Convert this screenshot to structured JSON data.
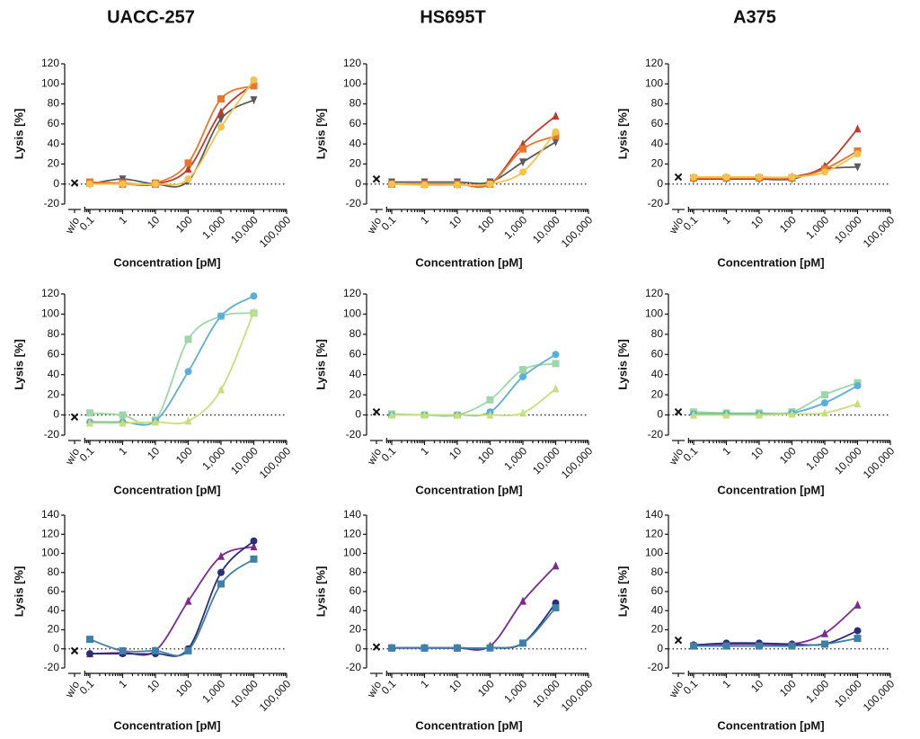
{
  "column_titles": [
    "UACC-257",
    "HS695T",
    "A375"
  ],
  "chart_data": [
    {
      "type": "line",
      "xscale": "log",
      "ylabel": "Lysis [%]",
      "xlabel": "Concentration [pM]",
      "control_label": "w/o",
      "control_value": 1,
      "x": [
        0.1,
        1,
        10,
        100,
        1000,
        10000
      ],
      "xlim": [
        0.07,
        100000
      ],
      "xticks": [
        0.1,
        1,
        10,
        100,
        {
          "value": 1000,
          "label": "1,000"
        },
        {
          "value": 10000,
          "label": "10,000"
        },
        {
          "value": 100000,
          "label": "100,000"
        }
      ],
      "ylim": [
        -20,
        120
      ],
      "yticks": [
        -20,
        0,
        20,
        40,
        60,
        80,
        100,
        120
      ],
      "series": [
        {
          "color": "#5b5b5b",
          "marker": "triangle-down",
          "values": [
            0,
            5,
            0,
            3,
            65,
            84
          ]
        },
        {
          "color": "#c0392b",
          "marker": "triangle",
          "values": [
            1,
            0,
            0,
            15,
            72,
            100
          ]
        },
        {
          "color": "#e8772e",
          "marker": "square",
          "values": [
            2,
            1,
            1,
            21,
            85,
            98
          ]
        },
        {
          "color": "#f5c24a",
          "marker": "circle",
          "values": [
            0,
            0,
            0,
            5,
            57,
            104
          ]
        }
      ]
    },
    {
      "type": "line",
      "xscale": "log",
      "ylabel": "Lysis [%]",
      "xlabel": "Concentration [pM]",
      "control_label": "w/o",
      "control_value": 5,
      "x": [
        0.1,
        1,
        10,
        100,
        1000,
        10000
      ],
      "xlim": [
        0.07,
        100000
      ],
      "xticks": [
        0.1,
        1,
        10,
        100,
        {
          "value": 1000,
          "label": "1,000"
        },
        {
          "value": 10000,
          "label": "10,000"
        },
        {
          "value": 100000,
          "label": "100,000"
        }
      ],
      "ylim": [
        -20,
        120
      ],
      "yticks": [
        -20,
        0,
        20,
        40,
        60,
        80,
        100,
        120
      ],
      "series": [
        {
          "color": "#5b5b5b",
          "marker": "triangle-down",
          "values": [
            2,
            2,
            2,
            2,
            22,
            42
          ]
        },
        {
          "color": "#c0392b",
          "marker": "triangle",
          "values": [
            0,
            0,
            0,
            0,
            40,
            68
          ]
        },
        {
          "color": "#e8772e",
          "marker": "square",
          "values": [
            0,
            0,
            0,
            0,
            35,
            48
          ]
        },
        {
          "color": "#f5c24a",
          "marker": "circle",
          "values": [
            0,
            -1,
            -1,
            0,
            12,
            52
          ]
        }
      ]
    },
    {
      "type": "line",
      "xscale": "log",
      "ylabel": "Lysis [%]",
      "xlabel": "Concentration [pM]",
      "control_label": "w/o",
      "control_value": 7,
      "x": [
        0.1,
        1,
        10,
        100,
        1000,
        10000
      ],
      "xlim": [
        0.07,
        100000
      ],
      "xticks": [
        0.1,
        1,
        10,
        100,
        {
          "value": 1000,
          "label": "1,000"
        },
        {
          "value": 10000,
          "label": "10,000"
        },
        {
          "value": 100000,
          "label": "100,000"
        }
      ],
      "ylim": [
        -20,
        120
      ],
      "yticks": [
        -20,
        0,
        20,
        40,
        60,
        80,
        100,
        120
      ],
      "series": [
        {
          "color": "#5b5b5b",
          "marker": "triangle-down",
          "values": [
            5,
            5,
            5,
            5,
            15,
            17
          ]
        },
        {
          "color": "#c0392b",
          "marker": "triangle",
          "values": [
            6,
            6,
            6,
            7,
            18,
            55
          ]
        },
        {
          "color": "#e8772e",
          "marker": "square",
          "values": [
            6,
            6,
            6,
            6,
            15,
            33
          ]
        },
        {
          "color": "#f5c24a",
          "marker": "circle",
          "values": [
            7,
            7,
            7,
            7,
            12,
            30
          ]
        }
      ]
    },
    {
      "type": "line",
      "xscale": "log",
      "ylabel": "Lysis [%]",
      "xlabel": "Concentration [pM]",
      "control_label": "w/o",
      "control_value": -2,
      "x": [
        0.1,
        1,
        10,
        100,
        1000,
        10000
      ],
      "xlim": [
        0.07,
        100000
      ],
      "xticks": [
        0.1,
        1,
        10,
        100,
        {
          "value": 1000,
          "label": "1,000"
        },
        {
          "value": 10000,
          "label": "10,000"
        },
        {
          "value": 100000,
          "label": "100,000"
        }
      ],
      "ylim": [
        -20,
        120
      ],
      "yticks": [
        -20,
        0,
        20,
        40,
        60,
        80,
        100,
        120
      ],
      "series": [
        {
          "color": "#9fd6a9",
          "marker": "square",
          "values": [
            2,
            0,
            -5,
            75,
            98,
            101
          ]
        },
        {
          "color": "#5aaed8",
          "marker": "circle",
          "values": [
            -7,
            -7,
            -6,
            43,
            98,
            118
          ]
        },
        {
          "color": "#c6df7a",
          "marker": "triangle",
          "values": [
            -8,
            -8,
            -7,
            -6,
            25,
            102
          ]
        }
      ]
    },
    {
      "type": "line",
      "xscale": "log",
      "ylabel": "Lysis [%]",
      "xlabel": "Concentration [pM]",
      "control_label": "w/o",
      "control_value": 3,
      "x": [
        0.1,
        1,
        10,
        100,
        1000,
        10000
      ],
      "xlim": [
        0.07,
        100000
      ],
      "xticks": [
        0.1,
        1,
        10,
        100,
        {
          "value": 1000,
          "label": "1,000"
        },
        {
          "value": 10000,
          "label": "10,000"
        },
        {
          "value": 100000,
          "label": "100,000"
        }
      ],
      "ylim": [
        -20,
        120
      ],
      "yticks": [
        -20,
        0,
        20,
        40,
        60,
        80,
        100,
        120
      ],
      "series": [
        {
          "color": "#9fd6a9",
          "marker": "square",
          "values": [
            1,
            0,
            0,
            15,
            45,
            51
          ]
        },
        {
          "color": "#5aaed8",
          "marker": "circle",
          "values": [
            0,
            0,
            0,
            3,
            38,
            60
          ]
        },
        {
          "color": "#c6df7a",
          "marker": "triangle",
          "values": [
            0,
            0,
            0,
            0,
            2,
            26
          ]
        }
      ]
    },
    {
      "type": "line",
      "xscale": "log",
      "ylabel": "Lysis [%]",
      "xlabel": "Concentration [pM]",
      "control_label": "w/o",
      "control_value": 3,
      "x": [
        0.1,
        1,
        10,
        100,
        1000,
        10000
      ],
      "xlim": [
        0.07,
        100000
      ],
      "xticks": [
        0.1,
        1,
        10,
        100,
        {
          "value": 1000,
          "label": "1,000"
        },
        {
          "value": 10000,
          "label": "10,000"
        },
        {
          "value": 100000,
          "label": "100,000"
        }
      ],
      "ylim": [
        -20,
        120
      ],
      "yticks": [
        -20,
        0,
        20,
        40,
        60,
        80,
        100,
        120
      ],
      "series": [
        {
          "color": "#9fd6a9",
          "marker": "square",
          "values": [
            3,
            2,
            2,
            3,
            20,
            32
          ]
        },
        {
          "color": "#5aaed8",
          "marker": "circle",
          "values": [
            1,
            1,
            1,
            2,
            12,
            29
          ]
        },
        {
          "color": "#c6df7a",
          "marker": "triangle",
          "values": [
            0,
            0,
            0,
            1,
            2,
            11
          ]
        }
      ]
    },
    {
      "type": "line",
      "xscale": "log",
      "ylabel": "Lysis [%]",
      "xlabel": "Concentration [pM]",
      "control_label": "w/o",
      "control_value": -2,
      "x": [
        0.1,
        1,
        10,
        100,
        1000,
        10000
      ],
      "xlim": [
        0.07,
        100000
      ],
      "xticks": [
        0.1,
        1,
        10,
        100,
        {
          "value": 1000,
          "label": "1,000"
        },
        {
          "value": 10000,
          "label": "10,000"
        },
        {
          "value": 100000,
          "label": "100,000"
        }
      ],
      "ylim": [
        -20,
        140
      ],
      "yticks": [
        -20,
        0,
        20,
        40,
        60,
        80,
        100,
        120,
        140
      ],
      "series": [
        {
          "color": "#7b2a8e",
          "marker": "triangle",
          "values": [
            -5,
            -4,
            -2,
            50,
            97,
            107
          ]
        },
        {
          "color": "#2b2d7a",
          "marker": "circle",
          "values": [
            -5,
            -5,
            -5,
            0,
            80,
            113
          ]
        },
        {
          "color": "#3f80a6",
          "marker": "square",
          "values": [
            10,
            -2,
            -2,
            -2,
            68,
            94
          ]
        }
      ]
    },
    {
      "type": "line",
      "xscale": "log",
      "ylabel": "Lysis [%]",
      "xlabel": "Concentration [pM]",
      "control_label": "w/o",
      "control_value": 2,
      "x": [
        0.1,
        1,
        10,
        100,
        1000,
        10000
      ],
      "xlim": [
        0.07,
        100000
      ],
      "xticks": [
        0.1,
        1,
        10,
        100,
        {
          "value": 1000,
          "label": "1,000"
        },
        {
          "value": 10000,
          "label": "10,000"
        },
        {
          "value": 100000,
          "label": "100,000"
        }
      ],
      "ylim": [
        -20,
        140
      ],
      "yticks": [
        -20,
        0,
        20,
        40,
        60,
        80,
        100,
        120,
        140
      ],
      "series": [
        {
          "color": "#7b2a8e",
          "marker": "triangle",
          "values": [
            1,
            1,
            1,
            3,
            50,
            87
          ]
        },
        {
          "color": "#2b2d7a",
          "marker": "circle",
          "values": [
            1,
            1,
            1,
            1,
            6,
            48
          ]
        },
        {
          "color": "#3f80a6",
          "marker": "square",
          "values": [
            1,
            1,
            1,
            1,
            6,
            43
          ]
        }
      ]
    },
    {
      "type": "line",
      "xscale": "log",
      "ylabel": "Lysis [%]",
      "xlabel": "Concentration [pM]",
      "control_label": "w/o",
      "control_value": 9,
      "x": [
        0.1,
        1,
        10,
        100,
        1000,
        10000
      ],
      "xlim": [
        0.07,
        100000
      ],
      "xticks": [
        0.1,
        1,
        10,
        100,
        {
          "value": 1000,
          "label": "1,000"
        },
        {
          "value": 10000,
          "label": "10,000"
        },
        {
          "value": 100000,
          "label": "100,000"
        }
      ],
      "ylim": [
        -20,
        140
      ],
      "yticks": [
        -20,
        0,
        20,
        40,
        60,
        80,
        100,
        120,
        140
      ],
      "series": [
        {
          "color": "#7b2a8e",
          "marker": "triangle",
          "values": [
            4,
            5,
            5,
            5,
            16,
            46
          ]
        },
        {
          "color": "#2b2d7a",
          "marker": "circle",
          "values": [
            4,
            6,
            6,
            5,
            5,
            19
          ]
        },
        {
          "color": "#3f80a6",
          "marker": "square",
          "values": [
            3,
            3,
            3,
            3,
            5,
            11
          ]
        }
      ]
    }
  ]
}
